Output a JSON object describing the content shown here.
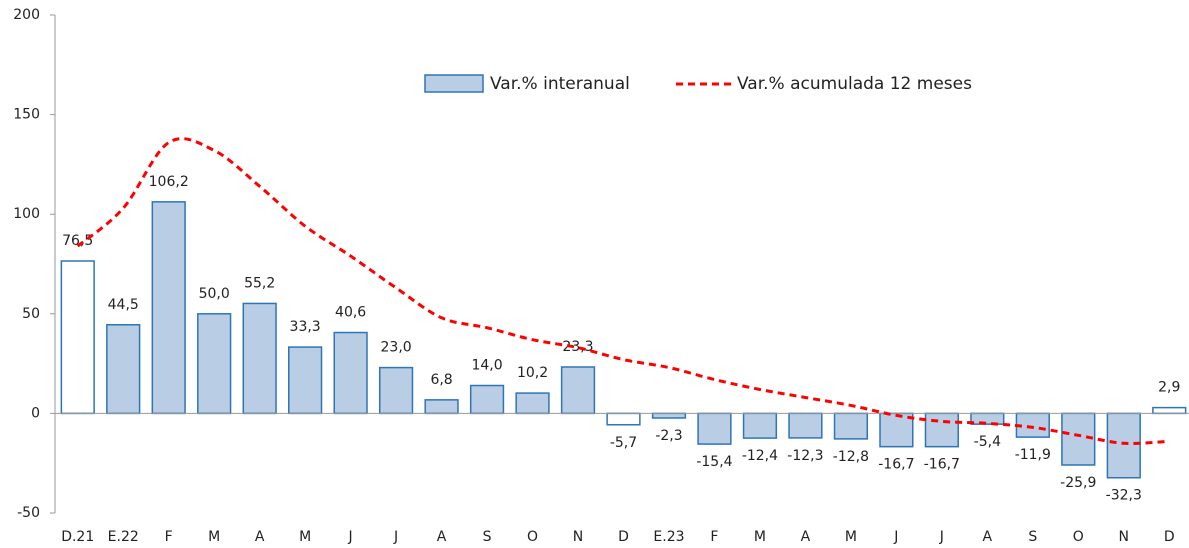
{
  "chart_data": {
    "type": "bar",
    "categories": [
      "D.21",
      "E.22",
      "F",
      "M",
      "A",
      "M",
      "J",
      "J",
      "A",
      "S",
      "O",
      "N",
      "D",
      "E.23",
      "F",
      "M",
      "A",
      "M",
      "J",
      "J",
      "A",
      "S",
      "O",
      "N",
      "D"
    ],
    "series": [
      {
        "name": "Var.% interanual",
        "type": "bar",
        "color": "#b9cde5",
        "edge_color": "#2e75b6",
        "colors": [
          "#ffffff",
          "#b9cde5",
          "#b9cde5",
          "#b9cde5",
          "#b9cde5",
          "#b9cde5",
          "#b9cde5",
          "#b9cde5",
          "#b9cde5",
          "#b9cde5",
          "#b9cde5",
          "#b9cde5",
          "#ffffff",
          "#b9cde5",
          "#b9cde5",
          "#b9cde5",
          "#b9cde5",
          "#b9cde5",
          "#b9cde5",
          "#b9cde5",
          "#b9cde5",
          "#b9cde5",
          "#b9cde5",
          "#b9cde5",
          "#ffffff"
        ],
        "values": [
          76.5,
          44.5,
          106.2,
          50.0,
          55.2,
          33.3,
          40.6,
          23.0,
          6.8,
          14.0,
          10.2,
          23.3,
          -5.7,
          -2.3,
          -15.4,
          -12.4,
          -12.3,
          -12.8,
          -16.7,
          -16.7,
          -5.4,
          -11.9,
          -25.9,
          -32.3,
          2.9
        ],
        "value_labels": [
          "76,5",
          "44,5",
          "106,2",
          "50,0",
          "55,2",
          "33,3",
          "40,6",
          "23,0",
          "6,8",
          "14,0",
          "10,2",
          "23,3",
          "-5,7",
          "-2,3",
          "-15,4",
          "-12,4",
          "-12,3",
          "-12,8",
          "-16,7",
          "-16,7",
          "-5,4",
          "-11,9",
          "-25,9",
          "-32,3",
          "2,9"
        ]
      },
      {
        "name": "Var.% acumulada 12 meses",
        "type": "line",
        "color": "#ff0000",
        "dashed": true,
        "values": [
          84,
          103,
          136,
          132,
          114,
          94,
          79,
          63,
          48,
          43,
          37,
          33,
          27,
          23,
          17,
          12,
          8,
          4,
          -1,
          -4,
          -5,
          -7,
          -11,
          -15,
          -14
        ]
      }
    ],
    "ylim": [
      -50,
      200
    ],
    "yticks": [
      -50,
      0,
      50,
      100,
      150,
      200
    ],
    "grid": false
  }
}
